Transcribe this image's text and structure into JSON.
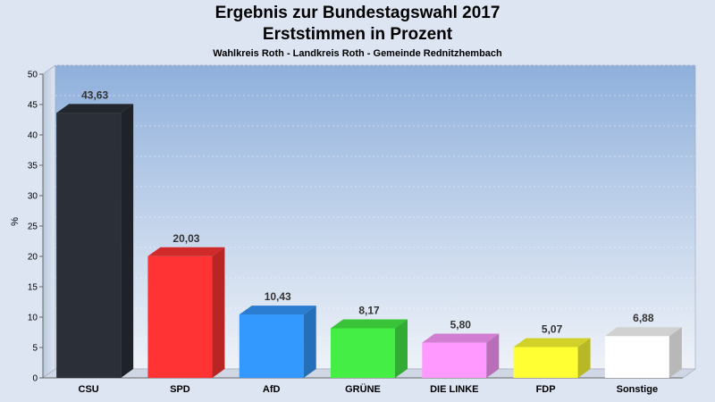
{
  "chart_data": {
    "type": "bar",
    "title": "Ergebnis zur Bundestagswahl 2017",
    "subtitle": "Erststimmen in Prozent",
    "caption": "Wahlkreis Roth - Landkreis Roth - Gemeinde Rednitzhembach",
    "ylabel": "%",
    "xlabel": "",
    "ylim": [
      0,
      50
    ],
    "yticks": [
      0,
      5,
      10,
      15,
      20,
      25,
      30,
      35,
      40,
      45,
      50
    ],
    "grid": true,
    "categories": [
      "CSU",
      "SPD",
      "AfD",
      "GRÜNE",
      "DIE LINKE",
      "FDP",
      "Sonstige"
    ],
    "values": [
      43.63,
      20.03,
      10.43,
      8.17,
      5.8,
      5.07,
      6.88
    ],
    "value_labels": [
      "43,63",
      "20,03",
      "10,43",
      "8,17",
      "5,80",
      "5,07",
      "6,88"
    ],
    "colors": [
      "#2b2f38",
      "#ff3333",
      "#3399ff",
      "#44ee44",
      "#ff99ff",
      "#ffff33",
      "#ffffff"
    ]
  }
}
